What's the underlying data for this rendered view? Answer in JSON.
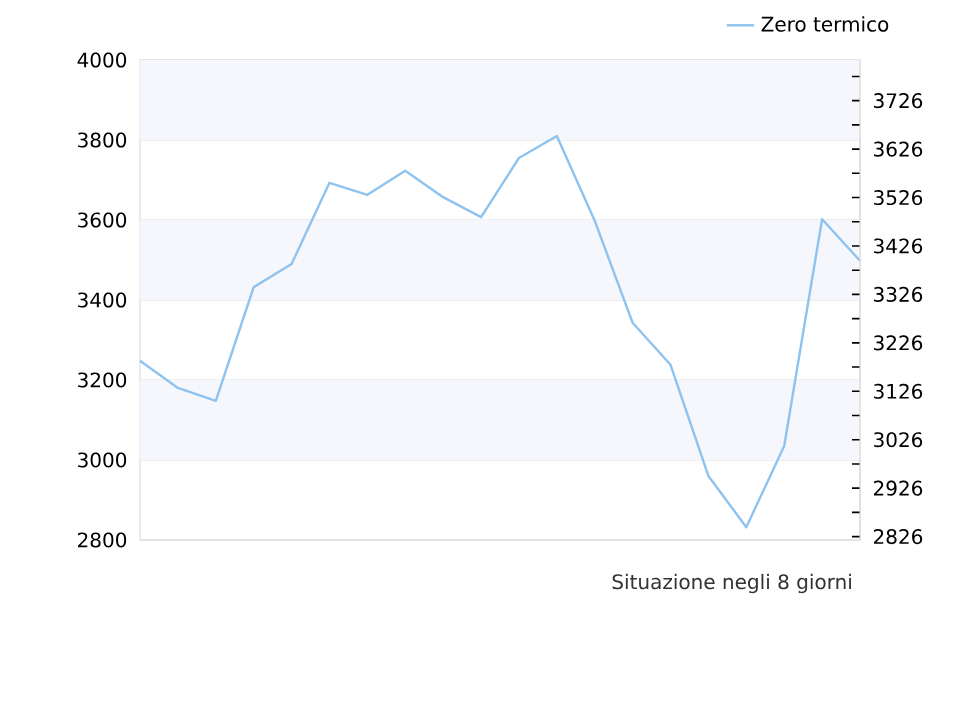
{
  "chart_data": {
    "type": "line",
    "xlabel": "Situazione negli 8 giorni",
    "categories": [
      null,
      null,
      null,
      null,
      null,
      null,
      null,
      null,
      null,
      null,
      null,
      null,
      null,
      null,
      null,
      null,
      null,
      null,
      null,
      null
    ],
    "series": [
      {
        "name": "Zero termico",
        "color": "#8ec3f0",
        "values": [
          3248,
          3180,
          3148,
          3432,
          3490,
          3693,
          3663,
          3723,
          3657,
          3607,
          3755,
          3810,
          3598,
          3343,
          3238,
          2960,
          2832,
          3035,
          3602,
          3498
        ]
      }
    ],
    "ylim": [
      2800,
      4000
    ],
    "yticks": [
      2800,
      3000,
      3200,
      3400,
      3600,
      3800,
      4000
    ],
    "y2lim": [
      2819,
      3810
    ],
    "y2ticks": [
      2826,
      {
        "value": 2876,
        "label": null
      },
      2926,
      {
        "value": 2976,
        "label": null
      },
      3026,
      {
        "value": 3076,
        "label": null
      },
      3126,
      {
        "value": 3176,
        "label": null
      },
      3226,
      {
        "value": 3276,
        "label": null
      },
      3326,
      {
        "value": 3376,
        "label": null
      },
      3426,
      {
        "value": 3476,
        "label": null
      },
      3526,
      {
        "value": 3576,
        "label": null
      },
      3626,
      {
        "value": 3676,
        "label": null
      },
      3726,
      {
        "value": 3776,
        "label": null
      }
    ],
    "bands": [
      {
        "axis": "y",
        "from": 3000,
        "to": 3200,
        "color": "#f6f7fd"
      },
      {
        "axis": "y",
        "from": 3400,
        "to": 3600,
        "color": "#f6f7fd"
      },
      {
        "axis": "y",
        "from": 3800,
        "to": 4000,
        "color": "#f6f7fd"
      }
    ],
    "grid": "y",
    "legend": "top right",
    "marker": "none",
    "line_style": "solid"
  }
}
